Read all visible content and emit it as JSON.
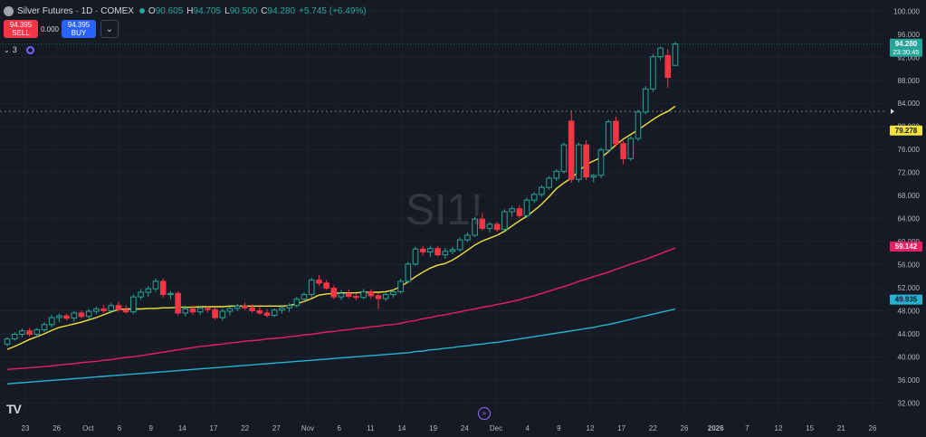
{
  "header": {
    "symbol": "Silver Futures · 1D · COMEX",
    "open_label": "O",
    "open": "90.605",
    "high_label": "H",
    "high": "94.705",
    "low_label": "L",
    "low": "90.500",
    "close_label": "C",
    "close": "94.280",
    "change": "+5.745 (+6.49%)"
  },
  "trade": {
    "sell_price": "94.395",
    "sell_label": "SELL",
    "spread": "0.000",
    "buy_price": "94.395",
    "buy_label": "BUY"
  },
  "indicators": {
    "count": "3"
  },
  "watermark": "SI1!",
  "colors": {
    "background": "#161a25",
    "up": "#26a69a",
    "down": "#f23645",
    "ma_fast": "#f2e33c",
    "ma_mid": "#e91e63",
    "ma_slow": "#26b3d1"
  },
  "chart_data": {
    "type": "candlestick",
    "ylim": [
      30,
      101
    ],
    "y_ticks": [
      "100.000",
      "96.000",
      "92.000",
      "88.000",
      "84.000",
      "80.000",
      "76.000",
      "72.000",
      "68.000",
      "64.000",
      "60.000",
      "56.000",
      "52.000",
      "48.000",
      "44.000",
      "40.000",
      "36.000",
      "32.000"
    ],
    "x_ticks": [
      "23",
      "26",
      "Oct",
      "6",
      "9",
      "14",
      "17",
      "22",
      "27",
      "Nov",
      "6",
      "11",
      "14",
      "19",
      "24",
      "Dec",
      "4",
      "9",
      "12",
      "17",
      "22",
      "26",
      "2026",
      "7",
      "12",
      "15",
      "21",
      "26"
    ],
    "price_label": {
      "value": "94.280",
      "countdown": "23:30:45"
    },
    "reference_price": 82.6,
    "ma_labels": [
      "79.278",
      "59.142",
      "49.935"
    ],
    "candles": [
      [
        42.2,
        43.4,
        41.8,
        43.1
      ],
      [
        43.1,
        44.3,
        42.8,
        43.9
      ],
      [
        43.9,
        44.9,
        43.4,
        44.5
      ],
      [
        44.5,
        45.0,
        43.5,
        43.9
      ],
      [
        43.9,
        45.0,
        43.5,
        44.7
      ],
      [
        44.7,
        46.0,
        44.3,
        45.6
      ],
      [
        45.6,
        47.3,
        45.1,
        46.8
      ],
      [
        46.8,
        47.5,
        46.0,
        47.1
      ],
      [
        47.1,
        47.5,
        46.3,
        46.7
      ],
      [
        46.7,
        47.9,
        46.1,
        47.6
      ],
      [
        47.6,
        48.1,
        46.7,
        47.0
      ],
      [
        47.0,
        48.3,
        46.6,
        47.9
      ],
      [
        47.9,
        48.7,
        47.4,
        48.3
      ],
      [
        48.3,
        49.0,
        47.6,
        48.0
      ],
      [
        48.0,
        49.3,
        47.6,
        48.9
      ],
      [
        48.9,
        49.6,
        47.8,
        48.2
      ],
      [
        48.2,
        49.0,
        47.5,
        47.8
      ],
      [
        47.8,
        50.8,
        47.4,
        50.4
      ],
      [
        50.4,
        51.8,
        49.9,
        51.2
      ],
      [
        51.2,
        52.3,
        50.4,
        51.8
      ],
      [
        51.8,
        53.6,
        51.3,
        53.1
      ],
      [
        53.1,
        53.6,
        50.3,
        50.8
      ],
      [
        50.8,
        51.4,
        50.0,
        51.0
      ],
      [
        51.0,
        51.4,
        47.2,
        47.6
      ],
      [
        47.6,
        48.9,
        47.0,
        48.3
      ],
      [
        48.3,
        48.9,
        47.3,
        47.8
      ],
      [
        47.8,
        48.8,
        47.3,
        48.4
      ],
      [
        48.4,
        48.8,
        47.6,
        48.2
      ],
      [
        48.2,
        48.6,
        46.4,
        46.8
      ],
      [
        46.8,
        48.4,
        46.3,
        47.9
      ],
      [
        47.9,
        48.7,
        47.2,
        48.4
      ],
      [
        48.4,
        49.2,
        47.9,
        48.8
      ],
      [
        48.8,
        49.4,
        48.1,
        48.5
      ],
      [
        48.5,
        49.1,
        47.6,
        48.0
      ],
      [
        48.0,
        48.7,
        47.3,
        47.6
      ],
      [
        47.6,
        48.3,
        46.8,
        47.2
      ],
      [
        47.2,
        48.4,
        46.9,
        48.1
      ],
      [
        48.1,
        49.0,
        47.5,
        48.5
      ],
      [
        48.5,
        49.3,
        47.8,
        48.9
      ],
      [
        48.9,
        50.4,
        48.5,
        50.0
      ],
      [
        50.0,
        51.2,
        49.5,
        50.8
      ],
      [
        50.8,
        53.7,
        50.3,
        53.3
      ],
      [
        53.3,
        54.2,
        52.3,
        52.8
      ],
      [
        52.8,
        53.3,
        51.6,
        51.9
      ],
      [
        51.9,
        52.4,
        50.0,
        50.4
      ],
      [
        50.4,
        51.6,
        49.9,
        51.0
      ],
      [
        51.0,
        51.7,
        50.1,
        50.5
      ],
      [
        50.5,
        51.0,
        49.8,
        50.3
      ],
      [
        50.3,
        51.8,
        50.0,
        51.3
      ],
      [
        51.3,
        51.7,
        50.1,
        50.6
      ],
      [
        50.6,
        51.0,
        48.3,
        50.1
      ],
      [
        50.1,
        51.1,
        49.7,
        50.8
      ],
      [
        50.8,
        51.6,
        50.3,
        51.3
      ],
      [
        51.3,
        53.5,
        51.0,
        53.1
      ],
      [
        53.1,
        56.5,
        52.8,
        56.1
      ],
      [
        56.1,
        59.1,
        55.8,
        58.7
      ],
      [
        58.7,
        59.3,
        57.6,
        58.2
      ],
      [
        58.2,
        59.3,
        57.3,
        58.8
      ],
      [
        58.8,
        59.2,
        57.4,
        57.7
      ],
      [
        57.7,
        58.9,
        57.0,
        58.3
      ],
      [
        58.3,
        59.1,
        57.8,
        58.6
      ],
      [
        58.6,
        60.7,
        58.2,
        60.3
      ],
      [
        60.3,
        61.6,
        59.9,
        61.1
      ],
      [
        61.1,
        64.3,
        60.8,
        63.9
      ],
      [
        63.9,
        65.0,
        61.9,
        62.3
      ],
      [
        62.3,
        63.4,
        61.6,
        63.0
      ],
      [
        63.0,
        63.4,
        61.7,
        62.1
      ],
      [
        62.1,
        65.6,
        61.8,
        65.2
      ],
      [
        65.2,
        66.2,
        64.3,
        65.7
      ],
      [
        65.7,
        66.3,
        64.1,
        64.5
      ],
      [
        64.5,
        67.6,
        64.1,
        67.2
      ],
      [
        67.2,
        68.6,
        66.7,
        68.2
      ],
      [
        68.2,
        69.8,
        67.8,
        69.4
      ],
      [
        69.4,
        71.4,
        69.0,
        71.0
      ],
      [
        71.0,
        72.6,
        70.5,
        72.2
      ],
      [
        72.2,
        77.2,
        71.8,
        76.8
      ],
      [
        80.9,
        82.8,
        70.2,
        70.8
      ],
      [
        70.8,
        77.2,
        70.3,
        76.8
      ],
      [
        76.8,
        77.6,
        70.7,
        71.2
      ],
      [
        71.2,
        71.7,
        70.3,
        71.5
      ],
      [
        71.5,
        76.3,
        71.0,
        75.9
      ],
      [
        75.9,
        81.2,
        75.4,
        80.8
      ],
      [
        80.9,
        81.7,
        76.5,
        77.0
      ],
      [
        77.0,
        77.5,
        73.4,
        74.4
      ],
      [
        74.4,
        78.3,
        74.0,
        77.9
      ],
      [
        77.9,
        82.9,
        77.5,
        82.5
      ],
      [
        82.5,
        87.0,
        82.1,
        86.5
      ],
      [
        86.5,
        92.6,
        86.0,
        92.1
      ],
      [
        92.1,
        93.8,
        91.5,
        93.6
      ],
      [
        92.3,
        93.4,
        86.7,
        88.5
      ],
      [
        90.6,
        94.7,
        90.5,
        94.3
      ]
    ],
    "series": [
      {
        "values": [
          41.3,
          41.8,
          42.4,
          43.0,
          43.5,
          44.0,
          44.6,
          45.1,
          45.4,
          45.7,
          46.0,
          46.4,
          46.8,
          47.3,
          47.8,
          48.2,
          48.3,
          48.3,
          48.3,
          48.4,
          48.4,
          48.5,
          48.5,
          48.6,
          48.6,
          48.6,
          48.7,
          48.7,
          48.7,
          48.7,
          48.8,
          48.8,
          48.8,
          48.8,
          48.8,
          48.8,
          48.8,
          48.8,
          48.9,
          49.2,
          49.6,
          50.1,
          50.7,
          50.9,
          51.0,
          51.1,
          51.1,
          51.1,
          51.2,
          51.2,
          51.2,
          51.3,
          51.6,
          52.2,
          53.0,
          53.9,
          54.7,
          55.4,
          55.9,
          56.2,
          56.8,
          57.6,
          58.5,
          59.4,
          60.1,
          60.6,
          61.1,
          61.8,
          62.7,
          63.6,
          64.4,
          65.4,
          66.5,
          67.8,
          69.2,
          70.2,
          71.0,
          72.2,
          73.4,
          74.0,
          74.6,
          75.6,
          76.8,
          77.8,
          78.6,
          79.4,
          80.3,
          81.2,
          82.0,
          82.6,
          83.5
        ],
        "color": "#f2e33c"
      },
      {
        "values": [
          37.8,
          37.9,
          38.0,
          38.1,
          38.2,
          38.3,
          38.4,
          38.6,
          38.7,
          38.8,
          39.0,
          39.1,
          39.2,
          39.4,
          39.5,
          39.7,
          39.9,
          40.0,
          40.2,
          40.4,
          40.6,
          40.8,
          41.0,
          41.2,
          41.4,
          41.6,
          41.8,
          41.9,
          42.1,
          42.2,
          42.4,
          42.5,
          42.7,
          42.8,
          42.9,
          43.1,
          43.2,
          43.3,
          43.5,
          43.6,
          43.8,
          43.9,
          44.1,
          44.3,
          44.4,
          44.6,
          44.7,
          44.9,
          45.0,
          45.2,
          45.3,
          45.5,
          45.6,
          45.8,
          46.1,
          46.3,
          46.6,
          46.8,
          47.1,
          47.3,
          47.6,
          47.8,
          48.1,
          48.3,
          48.6,
          48.8,
          49.1,
          49.3,
          49.6,
          49.9,
          50.3,
          50.6,
          51.0,
          51.4,
          51.8,
          52.2,
          52.6,
          53.1,
          53.5,
          53.9,
          54.3,
          54.7,
          55.2,
          55.6,
          56.1,
          56.5,
          56.9,
          57.4,
          57.9,
          58.4,
          58.9
        ],
        "color": "#e91e63"
      },
      {
        "values": [
          35.3,
          35.4,
          35.5,
          35.6,
          35.7,
          35.8,
          35.9,
          36.0,
          36.1,
          36.2,
          36.3,
          36.4,
          36.5,
          36.6,
          36.7,
          36.8,
          36.9,
          37.0,
          37.1,
          37.2,
          37.3,
          37.4,
          37.5,
          37.6,
          37.7,
          37.8,
          37.9,
          38.0,
          38.1,
          38.2,
          38.3,
          38.4,
          38.5,
          38.6,
          38.7,
          38.8,
          38.9,
          39.0,
          39.1,
          39.2,
          39.3,
          39.4,
          39.5,
          39.6,
          39.7,
          39.8,
          39.9,
          40.0,
          40.1,
          40.2,
          40.3,
          40.4,
          40.5,
          40.6,
          40.7,
          40.9,
          41.0,
          41.2,
          41.3,
          41.5,
          41.6,
          41.8,
          41.9,
          42.1,
          42.2,
          42.4,
          42.5,
          42.7,
          42.9,
          43.1,
          43.3,
          43.5,
          43.7,
          43.9,
          44.1,
          44.3,
          44.5,
          44.7,
          44.9,
          45.1,
          45.4,
          45.6,
          45.9,
          46.2,
          46.5,
          46.8,
          47.1,
          47.4,
          47.7,
          48.0,
          48.3
        ],
        "color": "#26b3d1"
      }
    ]
  }
}
